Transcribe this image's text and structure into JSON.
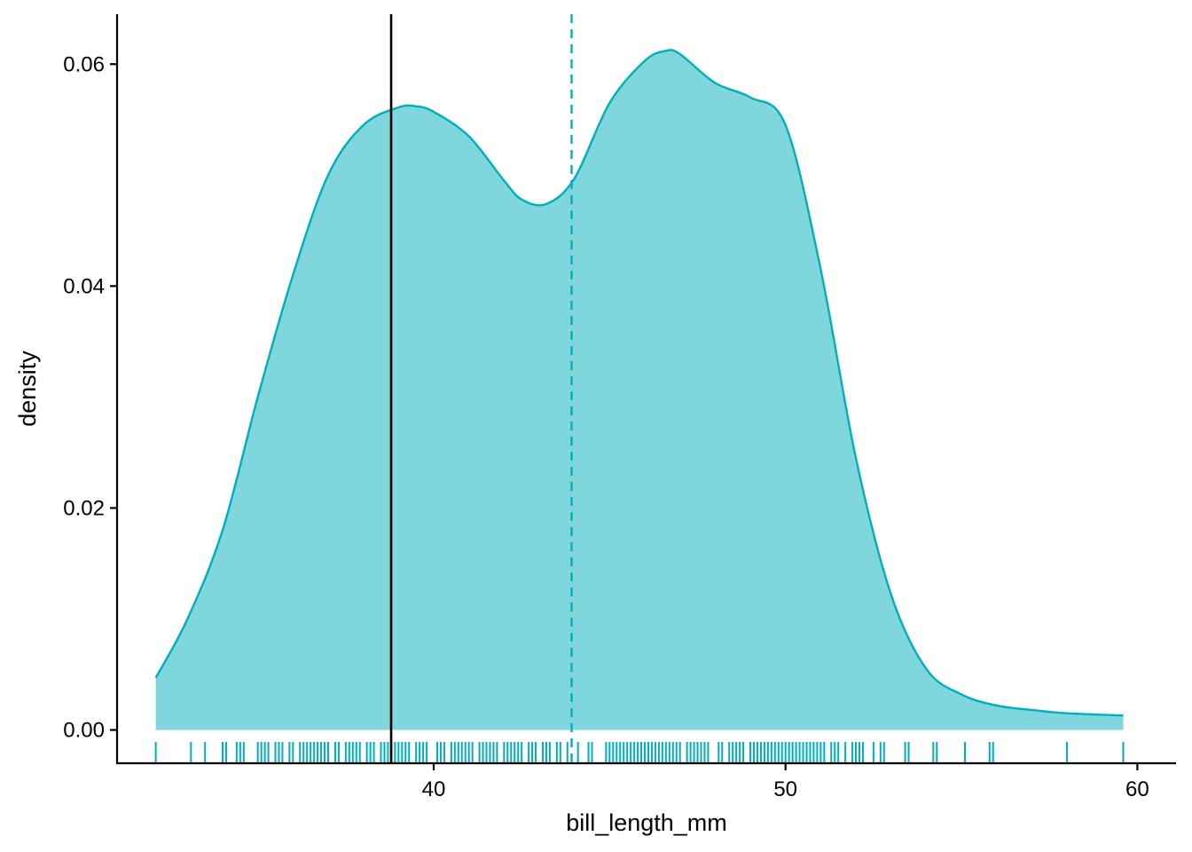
{
  "chart_data": {
    "type": "area",
    "xlabel": "bill_length_mm",
    "ylabel": "density",
    "xlim": [
      31,
      61.1
    ],
    "ylim": [
      -0.003,
      0.0645
    ],
    "x_ticks": [
      40,
      50,
      60
    ],
    "x_tick_labels": [
      "40",
      "50",
      "60"
    ],
    "y_ticks": [
      0,
      0.02,
      0.04,
      0.06
    ],
    "y_tick_labels": [
      "0.00",
      "0.02",
      "0.04",
      "0.06"
    ],
    "grid": false,
    "legend": "none",
    "series": [
      {
        "x": [
          32.1,
          33.0,
          34.0,
          35.0,
          36.0,
          37.0,
          38.0,
          39.0,
          39.5,
          40.0,
          41.0,
          42.0,
          42.5,
          43.2,
          44.0,
          45.0,
          46.0,
          46.6,
          47.0,
          48.0,
          49.0,
          50.0,
          51.0,
          52.0,
          53.0,
          54.0,
          55.0,
          56.0,
          57.0,
          58.0,
          59.6
        ],
        "y": [
          0.0047,
          0.01,
          0.018,
          0.03,
          0.041,
          0.05,
          0.0545,
          0.0561,
          0.0562,
          0.0557,
          0.0535,
          0.0495,
          0.0478,
          0.0474,
          0.0497,
          0.0565,
          0.0603,
          0.0612,
          0.0609,
          0.0583,
          0.057,
          0.0545,
          0.0415,
          0.0245,
          0.0122,
          0.0055,
          0.0032,
          0.0022,
          0.0018,
          0.0015,
          0.0013
        ]
      }
    ],
    "rug_values": [
      32.1,
      33.1,
      33.5,
      34.0,
      34.1,
      34.4,
      34.5,
      34.6,
      35.0,
      35.1,
      35.2,
      35.3,
      35.5,
      35.6,
      35.7,
      35.9,
      36.0,
      36.2,
      36.3,
      36.4,
      36.5,
      36.6,
      36.7,
      36.8,
      36.9,
      37.0,
      37.2,
      37.3,
      37.5,
      37.6,
      37.7,
      37.8,
      37.9,
      38.1,
      38.2,
      38.3,
      38.5,
      38.6,
      38.7,
      38.8,
      38.9,
      39.0,
      39.1,
      39.2,
      39.3,
      39.5,
      39.6,
      39.7,
      39.8,
      40.1,
      40.2,
      40.3,
      40.5,
      40.6,
      40.7,
      40.8,
      40.9,
      41.0,
      41.1,
      41.3,
      41.4,
      41.5,
      41.6,
      41.7,
      41.8,
      42.0,
      42.1,
      42.2,
      42.3,
      42.4,
      42.5,
      42.7,
      42.8,
      42.9,
      43.1,
      43.2,
      43.3,
      43.5,
      43.6,
      43.8,
      44.1,
      44.4,
      44.5,
      44.9,
      45.0,
      45.1,
      45.2,
      45.3,
      45.4,
      45.5,
      45.6,
      45.7,
      45.8,
      45.9,
      46.0,
      46.1,
      46.2,
      46.3,
      46.4,
      46.5,
      46.6,
      46.7,
      46.8,
      46.9,
      47.0,
      47.2,
      47.3,
      47.4,
      47.5,
      47.6,
      47.7,
      47.8,
      48.1,
      48.2,
      48.4,
      48.5,
      48.6,
      48.7,
      48.8,
      49.0,
      49.1,
      49.2,
      49.3,
      49.4,
      49.5,
      49.6,
      49.7,
      49.8,
      49.9,
      50.0,
      50.1,
      50.2,
      50.3,
      50.4,
      50.5,
      50.6,
      50.7,
      50.8,
      50.9,
      51.0,
      51.1,
      51.3,
      51.4,
      51.5,
      51.7,
      51.9,
      52.0,
      52.1,
      52.2,
      52.5,
      52.7,
      52.8,
      53.4,
      53.5,
      54.2,
      54.3,
      55.1,
      55.8,
      55.9,
      58.0,
      59.6
    ],
    "vlines": [
      {
        "x": 38.79,
        "style": "solid",
        "color": "#000000"
      },
      {
        "x": 43.92,
        "style": "dashed",
        "color": "#00AFBB"
      }
    ],
    "colors": {
      "fill": "#00AFBB",
      "fill_opacity": 0.5,
      "line": "#00AFBB",
      "rug": "#00AFBB",
      "axis": "#000000"
    }
  }
}
